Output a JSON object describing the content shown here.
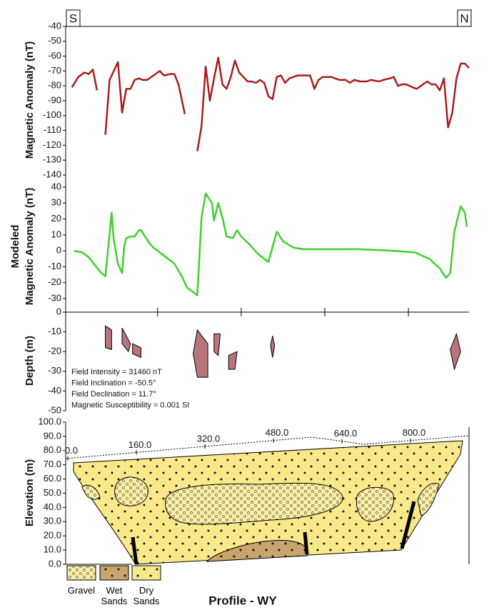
{
  "header": {
    "left": "S",
    "right": "N"
  },
  "chart_data": [
    {
      "type": "line",
      "ylabel": "Magnetic Anomaly (nT)",
      "xlim": [
        -20,
        945
      ],
      "ylim": [
        -140,
        -40
      ],
      "yticks": [
        -140,
        -130,
        -120,
        -110,
        -100,
        -90,
        -80,
        -70,
        -60,
        -50,
        -40
      ],
      "series": [
        {
          "color": "#a81c1c",
          "x": [
            -5,
            10,
            25,
            35,
            45,
            55,
            65,
            75,
            85,
            105,
            115,
            125,
            135,
            145,
            155,
            165,
            175,
            185,
            195,
            205,
            215,
            230,
            240,
            250,
            265,
            275,
            295,
            305,
            315,
            325,
            335,
            345,
            355,
            365,
            375,
            385,
            395,
            405,
            415,
            425,
            435,
            445,
            455,
            465,
            475,
            485,
            495,
            505,
            515,
            525,
            535,
            545,
            555,
            565,
            575,
            585,
            595,
            615,
            635,
            650,
            660,
            670,
            685,
            700,
            710,
            730,
            740,
            755,
            765,
            775,
            785,
            795,
            810,
            820,
            835,
            845,
            855,
            865,
            875,
            885,
            895,
            905,
            915,
            925,
            935,
            945
          ],
          "values": [
            -81,
            -74,
            -71,
            -72,
            -69,
            -83,
            null,
            -113,
            -76,
            -64,
            -98,
            -82,
            -82,
            -76,
            -75,
            -76,
            -76,
            -74,
            -72,
            -70,
            -73,
            -72,
            -72,
            -79,
            -99,
            null,
            -124,
            -107,
            -67,
            -90,
            -75,
            -61,
            -79,
            -82,
            -74,
            -63,
            -71,
            -74,
            -77,
            -77,
            -78,
            -76,
            -78,
            -87,
            -89,
            -74,
            -73,
            -78,
            -75,
            -74,
            -73,
            -73,
            -73,
            -73,
            -82,
            -76,
            -74,
            -74,
            -76,
            -76,
            -78,
            -76,
            -77,
            -77,
            -76,
            -77,
            -76,
            -75,
            -74,
            -80,
            -79,
            -79,
            -81,
            -82,
            -79,
            -77,
            -79,
            -79,
            -83,
            -75,
            -108,
            -98,
            -75,
            -65,
            -65,
            -68
          ]
        }
      ]
    },
    {
      "type": "line",
      "ylabel": [
        "Modeled",
        "Magnetic Anomaly (nT)"
      ],
      "xlim": [
        -20,
        945
      ],
      "ylim": [
        -30,
        40
      ],
      "yticks": [
        -30,
        -20,
        -10,
        0,
        10,
        20,
        30,
        40
      ],
      "series": [
        {
          "color": "#3fcf2c",
          "x": [
            0,
            20,
            35,
            50,
            65,
            75,
            90,
            95,
            105,
            115,
            120,
            125,
            135,
            145,
            155,
            160,
            170,
            180,
            190,
            215,
            240,
            260,
            270,
            295,
            305,
            315,
            330,
            335,
            345,
            355,
            365,
            380,
            390,
            400,
            420,
            440,
            465,
            485,
            500,
            525,
            550,
            590,
            680,
            765,
            815,
            850,
            875,
            890,
            900,
            910,
            925,
            935,
            940
          ],
          "values": [
            0,
            -1,
            -4,
            -9,
            -14,
            -16,
            24,
            7,
            -8,
            -14,
            3,
            8,
            9,
            9,
            13,
            13,
            9,
            5,
            2,
            -3,
            -8,
            -17,
            -23,
            -28,
            21,
            36,
            30,
            19,
            30,
            21,
            9,
            8,
            13,
            9,
            4,
            -2,
            -7,
            12,
            6,
            2,
            1,
            1,
            1,
            0,
            -1,
            -5,
            -11,
            -17,
            -14,
            12,
            28,
            24,
            15
          ]
        }
      ]
    },
    {
      "type": "polygon",
      "ylabel": "Depth (m)",
      "xlim": [
        -20,
        945
      ],
      "ylim": [
        -50,
        0
      ],
      "yticks": [
        -50,
        -40,
        -30,
        -20,
        -10,
        0
      ],
      "xticks": [
        200,
        400,
        600,
        800
      ],
      "color": "#b8767c",
      "bodies": [
        {
          "x": [
            75,
            90,
            90,
            75
          ],
          "y": [
            -7,
            -9,
            -19,
            -18
          ]
        },
        {
          "x": [
            115,
            135,
            130,
            115
          ],
          "y": [
            -8,
            -16,
            -20,
            -16
          ]
        },
        {
          "x": [
            140,
            160,
            160,
            140
          ],
          "y": [
            -16,
            -18,
            -23,
            -21
          ]
        },
        {
          "x": [
            295,
            320,
            320,
            295,
            285
          ],
          "y": [
            -9,
            -16,
            -33,
            -33,
            -21
          ]
        },
        {
          "x": [
            335,
            350,
            345,
            335
          ],
          "y": [
            -11,
            -11,
            -22,
            -20
          ]
        },
        {
          "x": [
            370,
            390,
            385,
            370
          ],
          "y": [
            -22,
            -20,
            -29,
            -29
          ]
        },
        {
          "x": [
            475,
            480,
            475,
            470
          ],
          "y": [
            -12,
            -17,
            -23,
            -17
          ]
        },
        {
          "x": [
            915,
            925,
            910,
            900
          ],
          "y": [
            -11,
            -20,
            -29,
            -19
          ]
        }
      ],
      "annotations": [
        "Field Intensity = 31460 nT",
        "Field Inclination = -50.5°",
        "Field Declination = 11.7°",
        "Magnetic Susceptibility = 0.001 SI"
      ]
    },
    {
      "type": "section",
      "ylabel": "Elevation (m)",
      "xlabel": "Profile - WY",
      "ylim": [
        0,
        100
      ],
      "yticks": [
        {
          "value": 0,
          "label": "0.0"
        },
        {
          "value": 10,
          "label": "10.0"
        },
        {
          "value": 20,
          "label": "20.0"
        },
        {
          "value": 30,
          "label": "30.0"
        },
        {
          "value": 40,
          "label": "40.0"
        },
        {
          "value": 50,
          "label": "50.0"
        },
        {
          "value": 60,
          "label": "60.0"
        },
        {
          "value": 70,
          "label": "70.0"
        },
        {
          "value": 80,
          "label": "80.0"
        },
        {
          "value": 90,
          "label": "90.0"
        },
        {
          "value": 100,
          "label": "100.0"
        }
      ],
      "xlim": [
        0,
        940
      ],
      "xticks": [
        {
          "value": 0,
          "label": "0.0"
        },
        {
          "value": 160,
          "label": "160.0"
        },
        {
          "value": 320,
          "label": "320.0"
        },
        {
          "value": 480,
          "label": "480.0"
        },
        {
          "value": 640,
          "label": "640.0"
        },
        {
          "value": 800,
          "label": "800.0"
        }
      ],
      "legend": [
        {
          "label": "Gravel",
          "color": "#fbf1a6"
        },
        {
          "label": "Wet Sands",
          "color": "#c9a46c"
        },
        {
          "label": "Dry Sands",
          "color": "#f9e98a"
        }
      ]
    }
  ]
}
